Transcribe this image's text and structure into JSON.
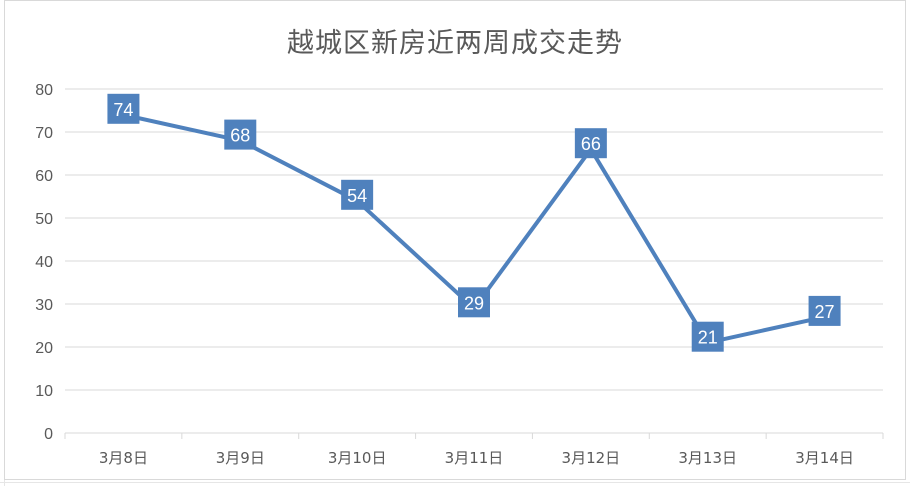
{
  "chart_data": {
    "type": "line",
    "title": "越城区新房近两周成交走势",
    "categories": [
      "3月8日",
      "3月9日",
      "3月10日",
      "3月11日",
      "3月12日",
      "3月13日",
      "3月14日"
    ],
    "values": [
      74,
      68,
      54,
      29,
      66,
      21,
      27
    ],
    "ylim": [
      0,
      80
    ],
    "yticks": [
      0,
      10,
      20,
      30,
      40,
      50,
      60,
      70,
      80
    ],
    "grid": true,
    "data_labels": true,
    "line_color": "#4f81bd",
    "label_fill": "#4f81bd",
    "grid_color": "#d9d9d9",
    "text_color": "#595959"
  }
}
